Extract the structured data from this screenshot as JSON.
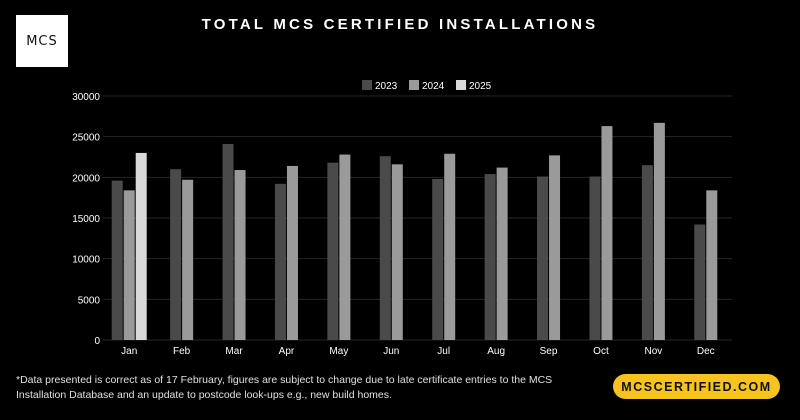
{
  "logo": {
    "text": "MCS"
  },
  "title": "TOTAL MCS CERTIFIED INSTALLATIONS",
  "footnote": "*Data presented is correct as of 17 February, figures are subject to change due to late certificate entries to the MCS Installation Database and an update to postcode look-ups e.g., new build homes.",
  "url_badge": "MCSCERTIFIED.COM",
  "colors": {
    "background": "#000000",
    "s2023": "#4a4a4a",
    "s2024": "#9a9a9a",
    "s2025": "#d9d9d9",
    "badge": "#f7c31e"
  },
  "chart_data": {
    "type": "bar",
    "title": "TOTAL MCS CERTIFIED INSTALLATIONS",
    "categories": [
      "Jan",
      "Feb",
      "Mar",
      "Apr",
      "May",
      "Jun",
      "Jul",
      "Aug",
      "Sep",
      "Oct",
      "Nov",
      "Dec"
    ],
    "series": [
      {
        "name": "2023",
        "values": [
          19600,
          21000,
          24100,
          19200,
          21800,
          22600,
          19800,
          20400,
          20100,
          20100,
          21500,
          14200
        ]
      },
      {
        "name": "2024",
        "values": [
          18400,
          19700,
          20900,
          21400,
          22800,
          21600,
          22900,
          21200,
          22700,
          26300,
          26700,
          18400
        ]
      },
      {
        "name": "2025",
        "values": [
          23000,
          null,
          null,
          null,
          null,
          null,
          null,
          null,
          null,
          null,
          null,
          null
        ]
      }
    ],
    "ylim": [
      0,
      30000
    ],
    "yticks": [
      "0",
      "5000",
      "10000",
      "15000",
      "20000",
      "25000",
      "30000"
    ],
    "legend_position": "top-center",
    "grid": true
  }
}
